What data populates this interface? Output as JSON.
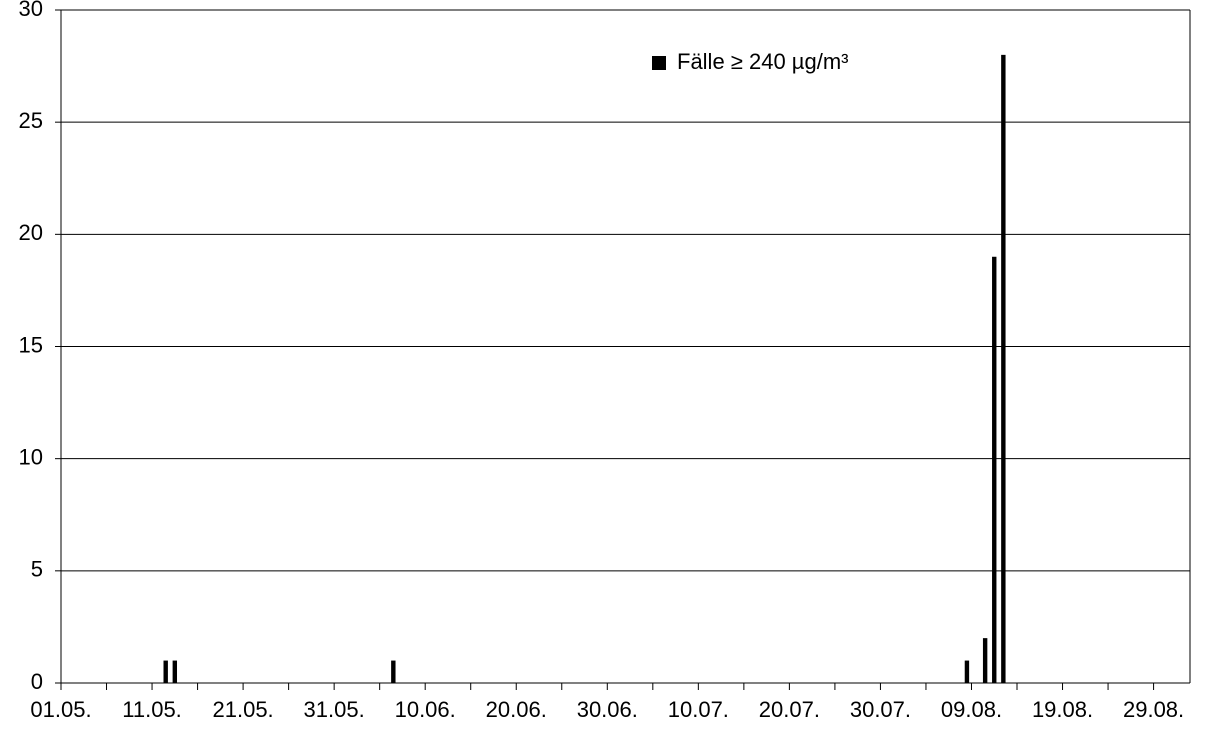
{
  "chart_data": {
    "type": "bar",
    "categories": [
      "01.05.",
      null,
      null,
      null,
      null,
      null,
      null,
      null,
      null,
      null,
      "11.05.",
      null,
      null,
      null,
      null,
      null,
      null,
      null,
      null,
      null,
      "21.05.",
      null,
      null,
      null,
      null,
      null,
      null,
      null,
      null,
      null,
      "31.05.",
      null,
      null,
      null,
      null,
      null,
      null,
      null,
      null,
      null,
      "10.06.",
      null,
      null,
      null,
      null,
      null,
      null,
      null,
      null,
      null,
      "20.06.",
      null,
      null,
      null,
      null,
      null,
      null,
      null,
      null,
      null,
      "30.06.",
      null,
      null,
      null,
      null,
      null,
      null,
      null,
      null,
      null,
      "10.07.",
      null,
      null,
      null,
      null,
      null,
      null,
      null,
      null,
      null,
      "20.07.",
      null,
      null,
      null,
      null,
      null,
      null,
      null,
      null,
      null,
      "30.07.",
      null,
      null,
      null,
      null,
      null,
      null,
      null,
      null,
      null,
      "09.08.",
      null,
      null,
      null,
      null,
      null,
      null,
      null,
      null,
      null,
      "19.08.",
      null,
      null,
      null,
      null,
      null,
      null,
      null,
      null,
      null,
      "29.08.",
      null,
      null,
      null
    ],
    "series": [
      {
        "name": "Fälle ≥ 240 µg/m³",
        "color": "#000000",
        "values": [
          0,
          0,
          0,
          0,
          0,
          0,
          0,
          0,
          0,
          0,
          0,
          1,
          1,
          0,
          0,
          0,
          0,
          0,
          0,
          0,
          0,
          0,
          0,
          0,
          0,
          0,
          0,
          0,
          0,
          0,
          0,
          0,
          0,
          0,
          0,
          0,
          1,
          0,
          0,
          0,
          0,
          0,
          0,
          0,
          0,
          0,
          0,
          0,
          0,
          0,
          0,
          0,
          0,
          0,
          0,
          0,
          0,
          0,
          0,
          0,
          0,
          0,
          0,
          0,
          0,
          0,
          0,
          0,
          0,
          0,
          0,
          0,
          0,
          0,
          0,
          0,
          0,
          0,
          0,
          0,
          0,
          0,
          0,
          0,
          0,
          0,
          0,
          0,
          0,
          0,
          0,
          0,
          0,
          0,
          0,
          0,
          0,
          0,
          0,
          1,
          0,
          2,
          19,
          28,
          0,
          0,
          0,
          0,
          0,
          0,
          0,
          0,
          0,
          0,
          0,
          0,
          0,
          0,
          0,
          0,
          0,
          0,
          0,
          0
        ]
      }
    ],
    "ylim": [
      0,
      30
    ],
    "yticks": [
      0,
      5,
      10,
      15,
      20,
      25,
      30
    ],
    "grid": true,
    "legend": "top-right"
  }
}
